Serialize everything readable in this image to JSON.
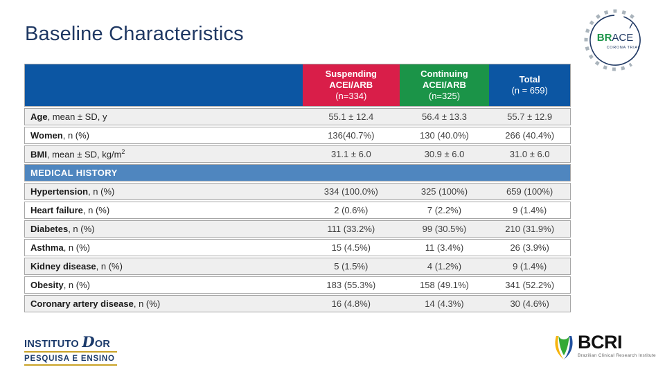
{
  "slide": {
    "title": "Baseline Characteristics"
  },
  "colors": {
    "title_navy": "#1F3863",
    "header_blue": "#0C56A3",
    "suspending_red": "#D91E49",
    "continuing_green": "#1B9448",
    "section_blue": "#4F86BF",
    "row_shaded": "#EFEFEF",
    "row_plain": "#FFFFFF",
    "border_gray": "#A6A6A6",
    "gold": "#C9A227"
  },
  "table": {
    "columns": [
      {
        "label": "",
        "sub": "",
        "color": "#0C56A3"
      },
      {
        "label": "Suspending ACEI/ARB",
        "sub": "(n=334)",
        "color": "#D91E49"
      },
      {
        "label": "Continuing ACEI/ARB",
        "sub": "(n=325)",
        "color": "#1B9448"
      },
      {
        "label": "Total",
        "sub": "(n = 659)",
        "color": "#0C56A3"
      }
    ],
    "rows": [
      {
        "type": "data",
        "bold": "Age",
        "rest": ", mean ± SD, y",
        "values": [
          "55.1 ± 12.4",
          "56.4 ± 13.3",
          "55.7 ± 12.9"
        ]
      },
      {
        "type": "data",
        "bold": "Women",
        "rest": ", n (%)",
        "values": [
          "136(40.7%)",
          "130 (40.0%)",
          "266 (40.4%)"
        ]
      },
      {
        "type": "data",
        "bold": "BMI",
        "rest": ", mean ± SD, kg/m",
        "sup": "2",
        "values": [
          "31.1 ± 6.0",
          "30.9 ± 6.0",
          "31.0 ± 6.0"
        ]
      },
      {
        "type": "section",
        "label": "MEDICAL HISTORY"
      },
      {
        "type": "data",
        "bold": "Hypertension",
        "rest": ", n (%)",
        "values": [
          "334 (100.0%)",
          "325 (100%)",
          "659 (100%)"
        ]
      },
      {
        "type": "data",
        "bold": "Heart failure",
        "rest": ", n (%)",
        "values": [
          "2 (0.6%)",
          "7 (2.2%)",
          "9 (1.4%)"
        ]
      },
      {
        "type": "data",
        "bold": "Diabetes",
        "rest": ", n (%)",
        "values": [
          "111 (33.2%)",
          "99 (30.5%)",
          "210 (31.9%)"
        ]
      },
      {
        "type": "data",
        "bold": "Asthma",
        "rest": ", n (%)",
        "values": [
          "15 (4.5%)",
          "11 (3.4%)",
          "26 (3.9%)"
        ]
      },
      {
        "type": "data",
        "bold": "Kidney disease",
        "rest": ", n (%)",
        "values": [
          "5 (1.5%)",
          "4 (1.2%)",
          "9 (1.4%)"
        ]
      },
      {
        "type": "data",
        "bold": "Obesity",
        "rest": ", n (%)",
        "values": [
          "183 (55.3%)",
          "158 (49.1%)",
          "341 (52.2%)"
        ]
      },
      {
        "type": "data",
        "bold": "Coronary artery disease",
        "rest": ", n (%)",
        "values": [
          "16 (4.8%)",
          "14 (4.3%)",
          "30 (4.6%)"
        ]
      }
    ]
  },
  "logos": {
    "brace": {
      "prefix": "BR",
      "suffix": "ACE",
      "subtitle": "CORONA TRIAL"
    },
    "instituto_dor": {
      "word1": "INSTITUTO",
      "initial": "D",
      "word2": "OR",
      "line2": "PESQUISA E ENSINO"
    },
    "bcri": {
      "name": "BCRI",
      "tagline": "Brazilian Clinical Research Institute"
    }
  }
}
